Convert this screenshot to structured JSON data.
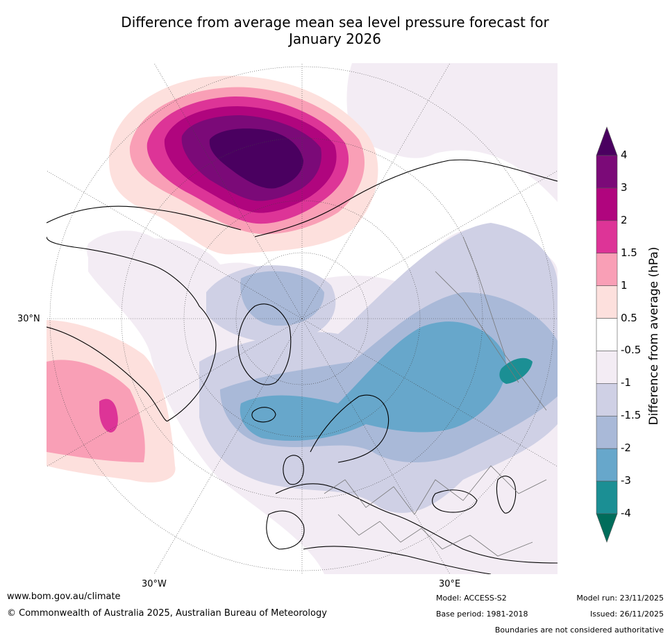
{
  "title_line1": "Difference from average mean sea level pressure forecast for",
  "title_line2": "January 2026",
  "map": {
    "lat_label": "30°N",
    "lon_labels": [
      "30°W",
      "30°E"
    ]
  },
  "colorbar": {
    "label": "Difference from average (hPa)",
    "ticks": [
      "4",
      "3",
      "2",
      "1.5",
      "1",
      "0.5",
      "-0.5",
      "-1",
      "-1.5",
      "-2",
      "-3",
      "-4"
    ],
    "colors": [
      "#4a0060",
      "#7b0a78",
      "#b0057e",
      "#dd3497",
      "#f99fb6",
      "#fde0dd",
      "#ffffff",
      "#f3ecf4",
      "#cfd0e5",
      "#a9b9d8",
      "#67a7cb",
      "#1b8f94",
      "#006d5b"
    ]
  },
  "footer": {
    "website": "www.bom.gov.au/climate",
    "copyright": "© Commonwealth of Australia 2025, Australian Bureau of Meteorology",
    "model": "Model: ACCESS-S2",
    "base_period": "Base period: 1981-2018",
    "model_run": "Model run: 23/11/2025",
    "issued": "Issued: 26/11/2025",
    "disclaimer": "Boundaries are not considered authoritative"
  }
}
